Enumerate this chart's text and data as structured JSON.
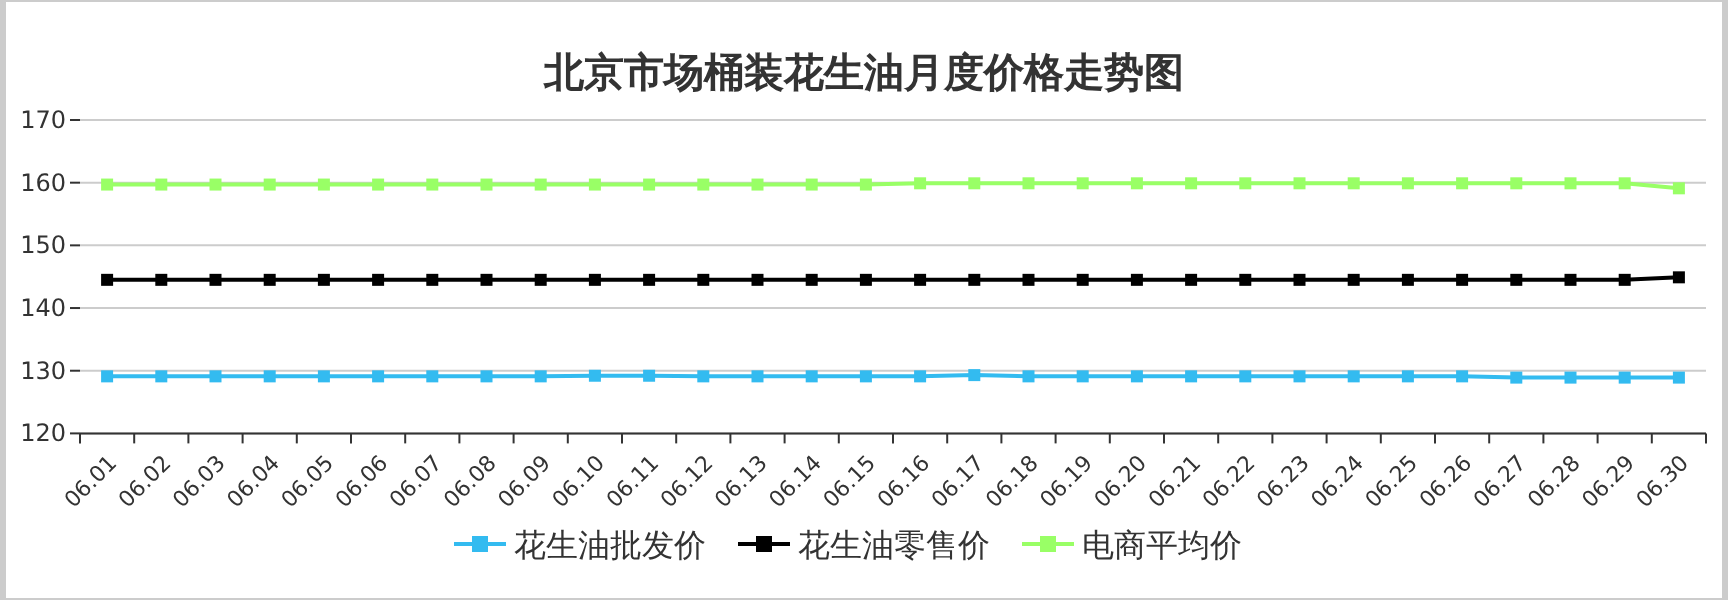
{
  "chart_data": {
    "type": "line",
    "title": "北京市场桶装花生油月度价格走势图",
    "categories": [
      "06.01",
      "06.02",
      "06.03",
      "06.04",
      "06.05",
      "06.06",
      "06.07",
      "06.08",
      "06.09",
      "06.10",
      "06.11",
      "06.12",
      "06.13",
      "06.14",
      "06.15",
      "06.16",
      "06.17",
      "06.18",
      "06.19",
      "06.20",
      "06.21",
      "06.22",
      "06.23",
      "06.24",
      "06.25",
      "06.26",
      "06.27",
      "06.28",
      "06.29",
      "06.30"
    ],
    "series": [
      {
        "name": "花生油批发价",
        "color": "#33bbf0",
        "values": [
          129.1,
          129.1,
          129.1,
          129.1,
          129.1,
          129.1,
          129.1,
          129.1,
          129.1,
          129.2,
          129.2,
          129.1,
          129.1,
          129.1,
          129.1,
          129.1,
          129.3,
          129.1,
          129.1,
          129.1,
          129.1,
          129.1,
          129.1,
          129.1,
          129.1,
          129.1,
          128.9,
          128.9,
          128.9,
          128.9
        ]
      },
      {
        "name": "花生油零售价",
        "color": "#000000",
        "values": [
          144.5,
          144.5,
          144.5,
          144.5,
          144.5,
          144.5,
          144.5,
          144.5,
          144.5,
          144.5,
          144.5,
          144.5,
          144.5,
          144.5,
          144.5,
          144.5,
          144.5,
          144.5,
          144.5,
          144.5,
          144.5,
          144.5,
          144.5,
          144.5,
          144.5,
          144.5,
          144.5,
          144.5,
          144.5,
          144.9
        ]
      },
      {
        "name": "电商平均价",
        "color": "#99ff66",
        "values": [
          159.7,
          159.7,
          159.7,
          159.7,
          159.7,
          159.7,
          159.7,
          159.7,
          159.7,
          159.7,
          159.7,
          159.7,
          159.7,
          159.7,
          159.7,
          159.9,
          159.9,
          159.9,
          159.9,
          159.9,
          159.9,
          159.9,
          159.9,
          159.9,
          159.9,
          159.9,
          159.9,
          159.9,
          159.9,
          159.1
        ]
      }
    ],
    "ylim": [
      120,
      170
    ],
    "yticks": [
      120,
      130,
      140,
      150,
      160,
      170
    ],
    "grid": "y",
    "legend": "bottom",
    "marker": "square"
  }
}
